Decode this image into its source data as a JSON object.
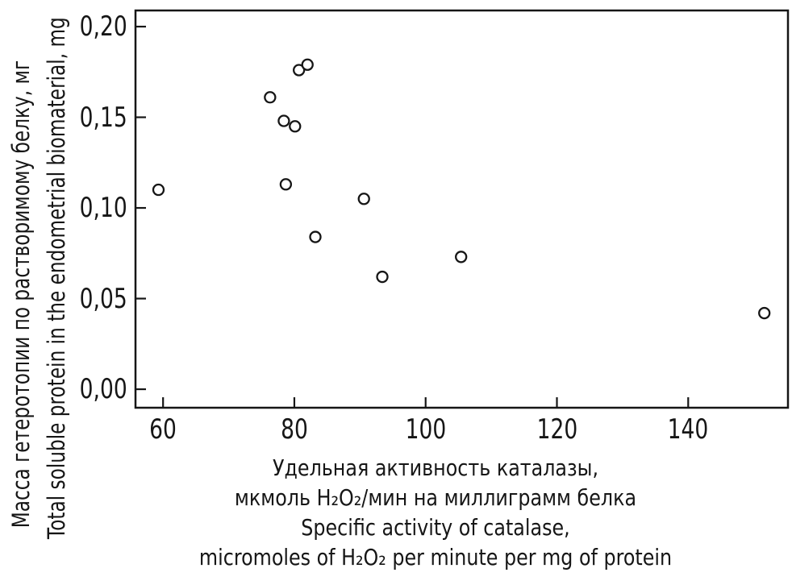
{
  "figure": {
    "background": "#ffffff",
    "ink_color": "#161616",
    "marker_fill": "#ffffff"
  },
  "chart_data": {
    "type": "scatter",
    "title": "",
    "marker": "open-circle",
    "grid": false,
    "legend": null,
    "xlabel_lines": [
      "Удельная активность каталазы,",
      "мкмоль H₂O₂/мин на миллиграмм белка",
      "Specific activity of catalase,",
      "micromoles of H₂O₂ per minute per mg of protein"
    ],
    "ylabel_lines": [
      "Масса гетеротопии по растворимому белку, мг",
      "Total soluble protein in the endometrial biomaterial, mg"
    ],
    "xlim": [
      55.8,
      155.2
    ],
    "ylim": [
      -0.0102,
      0.2089
    ],
    "x_ticks": [
      {
        "value": 60,
        "label": "60"
      },
      {
        "value": 80,
        "label": "80"
      },
      {
        "value": 100,
        "label": "100"
      },
      {
        "value": 120,
        "label": "120"
      },
      {
        "value": 140,
        "label": "140"
      }
    ],
    "y_ticks": [
      {
        "value": 0.0,
        "label": "0,00"
      },
      {
        "value": 0.05,
        "label": "0,05"
      },
      {
        "value": 0.1,
        "label": "0,10"
      },
      {
        "value": 0.15,
        "label": "0,15"
      },
      {
        "value": 0.2,
        "label": "0,20"
      }
    ],
    "points": [
      {
        "x": 59.3,
        "y": 0.11
      },
      {
        "x": 76.3,
        "y": 0.161
      },
      {
        "x": 78.4,
        "y": 0.148
      },
      {
        "x": 78.7,
        "y": 0.113
      },
      {
        "x": 80.1,
        "y": 0.145
      },
      {
        "x": 80.7,
        "y": 0.176
      },
      {
        "x": 82.0,
        "y": 0.179
      },
      {
        "x": 83.2,
        "y": 0.084
      },
      {
        "x": 90.6,
        "y": 0.105
      },
      {
        "x": 93.4,
        "y": 0.062
      },
      {
        "x": 105.4,
        "y": 0.073
      },
      {
        "x": 151.6,
        "y": 0.042
      }
    ]
  }
}
